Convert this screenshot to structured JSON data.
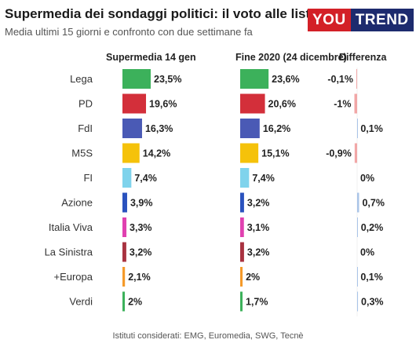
{
  "header": {
    "title": "Supermedia dei sondaggi politici: il voto alle liste",
    "subtitle": "Media ultimi 15 giorni e confronto con due settimane fa",
    "logo_left": "YOU",
    "logo_right": "TREND"
  },
  "columns": {
    "supermedia": "Supermedia 14 gen",
    "fine2020": "Fine 2020 (24 dicembre)",
    "differenza": "Differenza"
  },
  "footnote": "Istituti considerati: EMG, Euromedia, SWG, Tecnè",
  "colors": {
    "positive": "#a9c4e8",
    "negative": "#f1a7a7"
  },
  "chart_data": {
    "type": "table",
    "categories": [
      "Lega",
      "PD",
      "FdI",
      "M5S",
      "FI",
      "Azione",
      "Italia Viva",
      "La Sinistra",
      "+Europa",
      "Verdi"
    ],
    "colors": [
      "#3cb15b",
      "#d32f3a",
      "#4a5ab5",
      "#f5c20a",
      "#7fd3ec",
      "#2a52be",
      "#e040b0",
      "#a83240",
      "#f59a2a",
      "#3cb15b"
    ],
    "series": [
      {
        "name": "Supermedia 14 gen",
        "values": [
          23.5,
          19.6,
          16.3,
          14.2,
          7.4,
          3.9,
          3.3,
          3.2,
          2.1,
          2
        ],
        "labels": [
          "23,5%",
          "19,6%",
          "16,3%",
          "14,2%",
          "7,4%",
          "3,9%",
          "3,3%",
          "3,2%",
          "2,1%",
          "2%"
        ]
      },
      {
        "name": "Fine 2020 (24 dicembre)",
        "values": [
          23.6,
          20.6,
          16.2,
          15.1,
          7.4,
          3.2,
          3.1,
          3.2,
          2,
          1.7
        ],
        "labels": [
          "23,6%",
          "20,6%",
          "16,2%",
          "15,1%",
          "7,4%",
          "3,2%",
          "3,1%",
          "3,2%",
          "2%",
          "1,7%"
        ]
      },
      {
        "name": "Differenza",
        "values": [
          -0.1,
          -1,
          0.1,
          -0.9,
          0,
          0.7,
          0.2,
          0,
          0.1,
          0.3
        ],
        "labels": [
          "-0,1%",
          "-1%",
          "0,1%",
          "-0,9%",
          "0%",
          "0,7%",
          "0,2%",
          "0%",
          "0,1%",
          "0,3%"
        ]
      }
    ]
  }
}
